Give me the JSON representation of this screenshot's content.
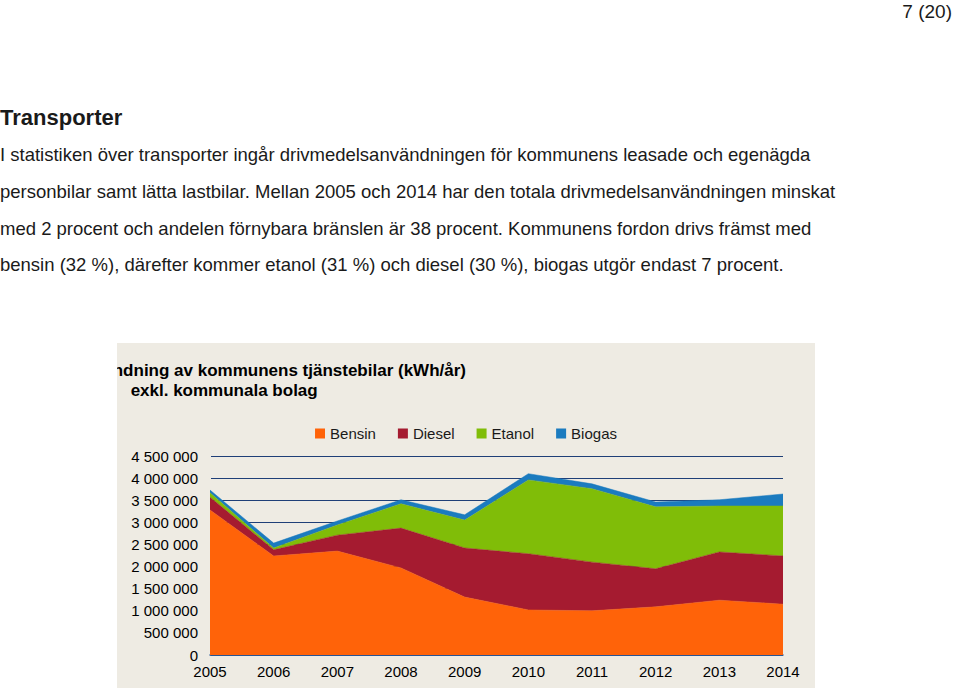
{
  "page_number": "7 (20)",
  "heading": "Transporter",
  "paragraph_lines": [
    "I statistiken över transporter ingår drivmedelsanvändningen för kommunens leasade och egenägda",
    "personbilar samt lätta lastbilar. Mellan 2005 och 2014 har den totala drivmedelsanvändningen minskat",
    "med 2 procent och andelen förnybara bränslen är 38 procent. Kommunens fordon drivs främst med",
    "bensin (32 %), därefter kommer etanol (31 %) och diesel (30 %), biogas utgör endast 7 procent."
  ],
  "chart_data": {
    "type": "area",
    "title": [
      "Drivmedelsanvändning av kommunens tjänstebilar (kWh/år)",
      "exkl. kommunala bolag"
    ],
    "categories": [
      "2005",
      "2006",
      "2007",
      "2008",
      "2009",
      "2010",
      "2011",
      "2012",
      "2013",
      "2014"
    ],
    "stacked": true,
    "grid": true,
    "legend": "top",
    "series": [
      {
        "name": "Bensin",
        "color": "#ff6309",
        "values": [
          3280000,
          2240000,
          2350000,
          1970000,
          1310000,
          1020000,
          1000000,
          1090000,
          1240000,
          1150000
        ]
      },
      {
        "name": "Diesel",
        "color": "#a51b30",
        "values": [
          290000,
          140000,
          360000,
          900000,
          1110000,
          1270000,
          1100000,
          860000,
          1090000,
          1090000
        ]
      },
      {
        "name": "Etanol",
        "color": "#80bd08",
        "values": [
          100000,
          40000,
          230000,
          550000,
          630000,
          1670000,
          1660000,
          1400000,
          1040000,
          1130000
        ]
      },
      {
        "name": "Biogas",
        "color": "#1b7bbf",
        "values": [
          60000,
          110000,
          90000,
          90000,
          120000,
          140000,
          110000,
          110000,
          140000,
          270000
        ]
      }
    ],
    "ylim": [
      0,
      4500000
    ],
    "yticks": [
      0,
      {
        "value": 500000,
        "label": "500 000"
      },
      {
        "value": 1000000,
        "label": "1 000 000"
      },
      {
        "value": 1500000,
        "label": "1 500 000"
      },
      {
        "value": 2000000,
        "label": "2 000 000"
      },
      {
        "value": 2500000,
        "label": "2 500 000"
      },
      {
        "value": 3000000,
        "label": "3 000 000"
      },
      {
        "value": 3500000,
        "label": "3 500 000"
      },
      {
        "value": 4000000,
        "label": "4 000 000"
      },
      {
        "value": 4500000,
        "label": "4 500 000"
      }
    ]
  }
}
